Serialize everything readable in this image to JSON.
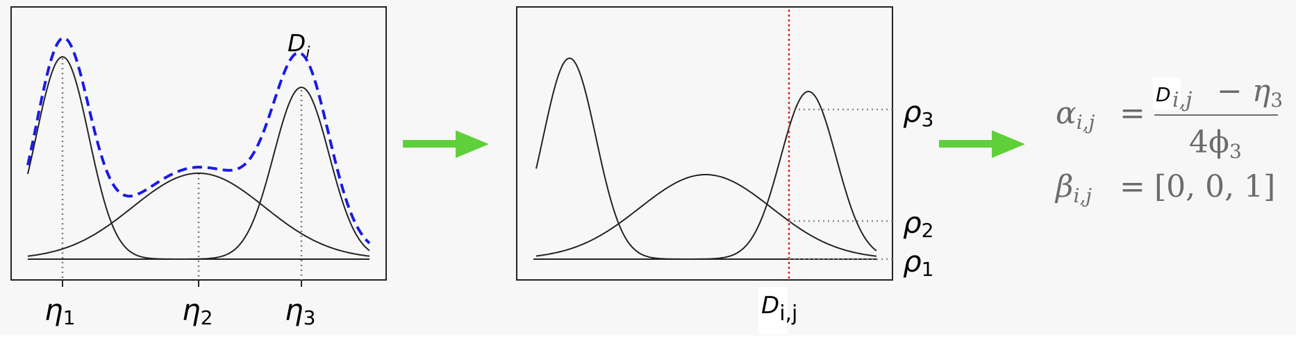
{
  "panel1": {
    "peaks": [
      "η",
      "η",
      "η"
    ],
    "peak_subs": [
      "1",
      "2",
      "3"
    ],
    "curve_label": "D",
    "curve_label_sub": "i"
  },
  "panel2": {
    "levels": [
      "ρ",
      "ρ",
      "ρ"
    ],
    "level_subs": [
      "3",
      "2",
      "1"
    ],
    "marker_label": "D",
    "marker_label_sub": "i,j"
  },
  "formula": {
    "alpha_lhs": "α",
    "alpha_lhs_sub": "i,j",
    "equals": "=",
    "numerator_D": "D",
    "numerator_D_sub": "i,j",
    "numerator_rest": "− η",
    "numerator_rest_sub": "3",
    "denominator": "4ϕ",
    "denominator_sub": "3",
    "beta_lhs": "β",
    "beta_lhs_sub": "i,j",
    "beta_rhs": "[0, 0, 1]"
  },
  "colors": {
    "background": "#f7f7f7",
    "arrow": "#5fcf3a",
    "dashed_curve": "#1a1ae6",
    "marker_line": "#e02020",
    "formula_text": "#6b6b6b"
  }
}
